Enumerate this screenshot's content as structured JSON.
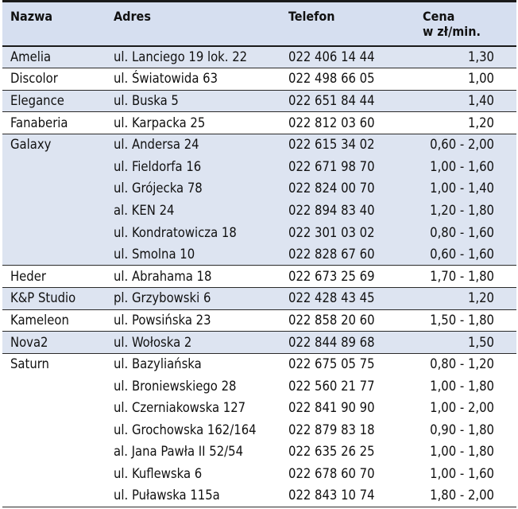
{
  "headers": {
    "name": "Nazwa",
    "address": "Adres",
    "phone": "Telefon",
    "price_line1": "Cena",
    "price_line2": "w zł/min."
  },
  "rows": [
    {
      "name": "Amelia",
      "address": "ul. Lanciego 19 lok. 22",
      "phone": "022 406 14 44",
      "price": "1,30"
    },
    {
      "name": "Discolor",
      "address": "ul. Światowida 63",
      "phone": "022 498 66 05",
      "price": "1,00"
    },
    {
      "name": "Elegance",
      "address": "ul. Buska 5",
      "phone": "022 651 84 44",
      "price": "1,40"
    },
    {
      "name": "Fanaberia",
      "address": "ul. Karpacka 25",
      "phone": "022 812 03 60",
      "price": "1,20"
    },
    {
      "name": "Galaxy",
      "address": "ul. Andersa 24",
      "phone": "022 615 34 02",
      "price": "0,60 - 2,00"
    },
    {
      "name": "",
      "address": "ul. Fieldorfa 16",
      "phone": "022 671 98 70",
      "price": "1,00 - 1,60"
    },
    {
      "name": "",
      "address": "ul. Grójecka 78",
      "phone": "022 824 00 70",
      "price": "1,00 - 1,40"
    },
    {
      "name": "",
      "address": "al. KEN 24",
      "phone": "022 894 83 40",
      "price": "1,20 - 1,80"
    },
    {
      "name": "",
      "address": "ul. Kondratowicza 18",
      "phone": "022 301 03 02",
      "price": "0,80 - 1,60"
    },
    {
      "name": "",
      "address": "ul. Smolna 10",
      "phone": "022 828 67 60",
      "price": "0,60 - 1,60"
    },
    {
      "name": "Heder",
      "address": "ul. Abrahama 18",
      "phone": "022 673 25 69",
      "price": "1,70 - 1,80"
    },
    {
      "name": "K&P Studio",
      "address": "pl. Grzybowski 6",
      "phone": "022 428 43 45",
      "price": "1,20"
    },
    {
      "name": "Kameleon",
      "address": "ul. Powsińska 23",
      "phone": "022 858 20 60",
      "price": "1,50 - 1,80"
    },
    {
      "name": "Nova2",
      "address": "ul. Wołoska 2",
      "phone": "022 844 89 68",
      "price": "1,50"
    },
    {
      "name": "Saturn",
      "address": "ul. Bazyliańska",
      "phone": "022 675 05 75",
      "price": "0,80 - 1,20"
    },
    {
      "name": "",
      "address": "ul. Broniewskiego 28",
      "phone": "022 560 21 77",
      "price": "1,00 - 1,80"
    },
    {
      "name": "",
      "address": "ul. Czerniakowska 127",
      "phone": "022 841 90 90",
      "price": "1,00 - 2,00"
    },
    {
      "name": "",
      "address": "ul. Grochowska 162/164",
      "phone": "022 879 83 18",
      "price": "0,90 - 1,80"
    },
    {
      "name": "",
      "address": "al. Jana Pawła II 52/54",
      "phone": "022 635 26 25",
      "price": "1,00 - 1,80"
    },
    {
      "name": "",
      "address": "ul. Kuflewska 6",
      "phone": "022 678 60 70",
      "price": "1,00 - 1,60"
    },
    {
      "name": "",
      "address": "ul. Puławska 115a",
      "phone": "022 843 10 74",
      "price": "1,80 - 2,00"
    }
  ]
}
